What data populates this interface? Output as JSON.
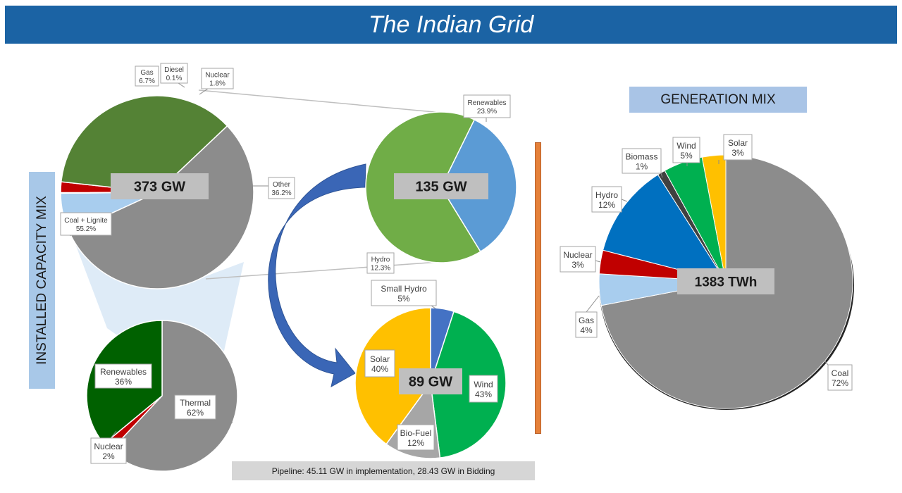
{
  "title": "The Indian Grid",
  "side_label": "INSTALLED CAPACITY MIX",
  "generation_label": "GENERATION MIX",
  "pipeline": "Pipeline: 45.11 GW in implementation, 28.43 GW in Bidding",
  "colors": {
    "banner": "#1b63a4",
    "coal": "#8c8c8c",
    "gas": "#a8cdee",
    "nuclear": "#c00000",
    "other": "#548235",
    "renewables_light": "#70ad47",
    "hydro": "#5b9bd5",
    "renewables_dark": "#006100",
    "solar": "#ffc000",
    "wind": "#00b050",
    "small_hydro": "#4472c4",
    "bio_fuel": "#a6a6a6",
    "generation_hydro": "#0070c0",
    "biomass": "#404040",
    "divider": "#e5813a",
    "arrow": "#2f5597"
  },
  "chart_data": [
    {
      "id": "installed",
      "type": "pie",
      "center_label": "373 GW",
      "slices": [
        {
          "name": "Gas",
          "value": 6.7,
          "label": "6.7%",
          "color": "#a8cdee"
        },
        {
          "name": "Diesel",
          "value": 0.1,
          "label": "0.1%",
          "color": "#d9d9d9"
        },
        {
          "name": "Nuclear",
          "value": 1.8,
          "label": "1.8%",
          "color": "#c00000"
        },
        {
          "name": "Other",
          "value": 36.2,
          "label": "36.2%",
          "color": "#548235"
        },
        {
          "name": "Coal + Lignite",
          "value": 55.2,
          "label": "55.2%",
          "color": "#8c8c8c"
        }
      ]
    },
    {
      "id": "other",
      "type": "pie",
      "center_label": "135 GW",
      "slices": [
        {
          "name": "Renewables",
          "value": 23.9,
          "label": "23.9%",
          "color": "#70ad47"
        },
        {
          "name": "Hydro",
          "value": 12.3,
          "label": "12.3%",
          "color": "#5b9bd5"
        }
      ]
    },
    {
      "id": "capacity_split",
      "type": "pie",
      "center_label": "",
      "slices": [
        {
          "name": "Thermal",
          "value": 62,
          "label": "62%",
          "color": "#8c8c8c"
        },
        {
          "name": "Nuclear",
          "value": 2,
          "label": "2%",
          "color": "#c00000"
        },
        {
          "name": "Renewables",
          "value": 36,
          "label": "36%",
          "color": "#006100"
        }
      ]
    },
    {
      "id": "renewables",
      "type": "pie",
      "center_label": "89 GW",
      "slices": [
        {
          "name": "Small Hydro",
          "value": 5,
          "label": "5%",
          "color": "#4472c4"
        },
        {
          "name": "Wind",
          "value": 43,
          "label": "43%",
          "color": "#00b050"
        },
        {
          "name": "Bio-Fuel",
          "value": 12,
          "label": "12%",
          "color": "#a6a6a6"
        },
        {
          "name": "Solar",
          "value": 40,
          "label": "40%",
          "color": "#ffc000"
        }
      ]
    },
    {
      "id": "generation",
      "type": "pie",
      "center_label": "1383 TWh",
      "slices": [
        {
          "name": "Coal",
          "value": 72,
          "label": "72%",
          "color": "#8c8c8c"
        },
        {
          "name": "Gas",
          "value": 4,
          "label": "4%",
          "color": "#a8cdee"
        },
        {
          "name": "Nuclear",
          "value": 3,
          "label": "3%",
          "color": "#c00000"
        },
        {
          "name": "Hydro",
          "value": 12,
          "label": "12%",
          "color": "#0070c0"
        },
        {
          "name": "Biomass",
          "value": 1,
          "label": "1%",
          "color": "#404040"
        },
        {
          "name": "Wind",
          "value": 5,
          "label": "5%",
          "color": "#00b050"
        },
        {
          "name": "Solar",
          "value": 3,
          "label": "3%",
          "color": "#ffc000"
        }
      ]
    }
  ]
}
